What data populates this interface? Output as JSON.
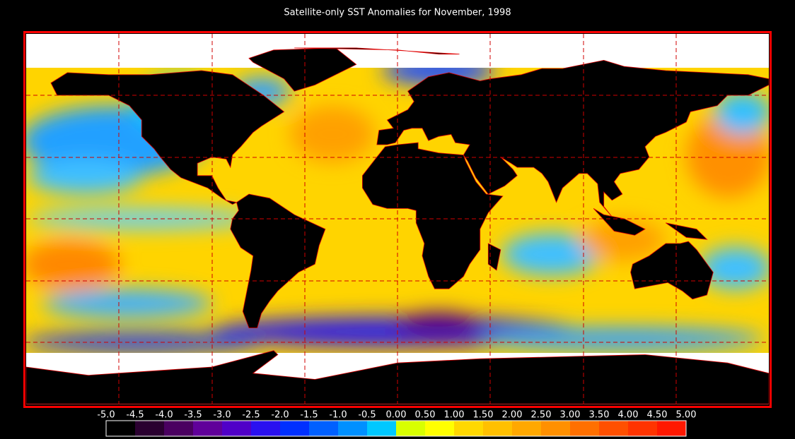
{
  "title": "Satellite-only SST Anomalies for November, 1998",
  "colorbar": {
    "ticks": [
      {
        "value": -5,
        "label": "-5.0"
      },
      -4.5,
      {
        "value": -4,
        "label": "-4.0"
      },
      -3.5,
      {
        "value": -3,
        "label": "-3.0"
      },
      -2.5,
      {
        "value": -2,
        "label": "-2.0"
      },
      -1.5,
      {
        "value": -1,
        "label": "-1.0"
      },
      -0.5,
      {
        "value": 0,
        "label": "0.00"
      },
      {
        "value": 0.5,
        "label": "0.50"
      },
      {
        "value": 1,
        "label": "1.00"
      },
      {
        "value": 1.5,
        "label": "1.50"
      },
      {
        "value": 2,
        "label": "2.00"
      },
      {
        "value": 2.5,
        "label": "2.50"
      },
      {
        "value": 3,
        "label": "3.00"
      },
      {
        "value": 3.5,
        "label": "3.50"
      },
      {
        "value": 4,
        "label": "4.00"
      },
      {
        "value": 4.5,
        "label": "4.50"
      },
      {
        "value": 5,
        "label": "5.00"
      }
    ],
    "colors": [
      "#000000",
      "#2a0030",
      "#4a0060",
      "#60009a",
      "#5000c8",
      "#2a10f0",
      "#0030ff",
      "#0060ff",
      "#0090ff",
      "#00c8ff",
      "#d8ff00",
      "#ffff00",
      "#ffd800",
      "#ffc000",
      "#ffa800",
      "#ff9000",
      "#ff7000",
      "#ff5000",
      "#ff3400",
      "#ff1800"
    ]
  }
}
